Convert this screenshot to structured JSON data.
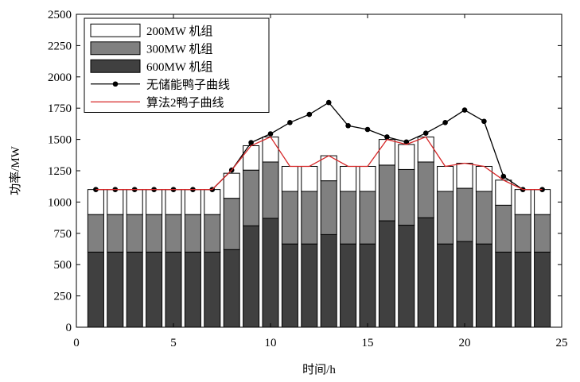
{
  "chart_data": {
    "type": "bar",
    "stacked": true,
    "xlabel": "时间/h",
    "ylabel": "功率/MW",
    "xlim": [
      0,
      25
    ],
    "ylim": [
      0,
      2500
    ],
    "xticks": [
      0,
      5,
      10,
      15,
      20,
      25
    ],
    "yticks": [
      0,
      250,
      500,
      750,
      1000,
      1250,
      1500,
      1750,
      2000,
      2250,
      2500
    ],
    "x": [
      1,
      2,
      3,
      4,
      5,
      6,
      7,
      8,
      9,
      10,
      11,
      12,
      13,
      14,
      15,
      16,
      17,
      18,
      19,
      20,
      21,
      22,
      23,
      24
    ],
    "legend_position": "top-left",
    "grid": false,
    "series": [
      {
        "name": "600MW 机组",
        "kind": "bar",
        "color": "#404040",
        "values": [
          600,
          600,
          600,
          600,
          600,
          600,
          600,
          620,
          810,
          870,
          665,
          665,
          740,
          665,
          665,
          850,
          815,
          875,
          665,
          685,
          665,
          600,
          600,
          600
        ]
      },
      {
        "name": "300MW 机组",
        "kind": "bar",
        "color": "#808080",
        "values": [
          300,
          300,
          300,
          300,
          300,
          300,
          300,
          410,
          445,
          450,
          420,
          420,
          430,
          420,
          420,
          445,
          445,
          445,
          420,
          425,
          420,
          375,
          300,
          300
        ]
      },
      {
        "name": "200MW 机组",
        "kind": "bar",
        "color": "#ffffff",
        "values": [
          200,
          200,
          200,
          200,
          200,
          200,
          200,
          200,
          195,
          200,
          200,
          200,
          200,
          200,
          200,
          205,
          200,
          200,
          200,
          200,
          200,
          200,
          200,
          200
        ]
      },
      {
        "name": "无储能鸭子曲线",
        "kind": "line",
        "color": "#000000",
        "marker": "circle",
        "values": [
          1100,
          1100,
          1100,
          1100,
          1100,
          1100,
          1100,
          1255,
          1475,
          1545,
          1635,
          1700,
          1795,
          1610,
          1580,
          1520,
          1480,
          1550,
          1635,
          1735,
          1645,
          1205,
          1100,
          1100
        ]
      },
      {
        "name": "算法2鸭子曲线",
        "kind": "line",
        "color": "#d62728",
        "values": [
          1100,
          1100,
          1100,
          1100,
          1100,
          1100,
          1100,
          1255,
          1450,
          1520,
          1285,
          1285,
          1370,
          1285,
          1285,
          1500,
          1460,
          1520,
          1285,
          1310,
          1285,
          1175,
          1100,
          1100
        ]
      }
    ]
  }
}
